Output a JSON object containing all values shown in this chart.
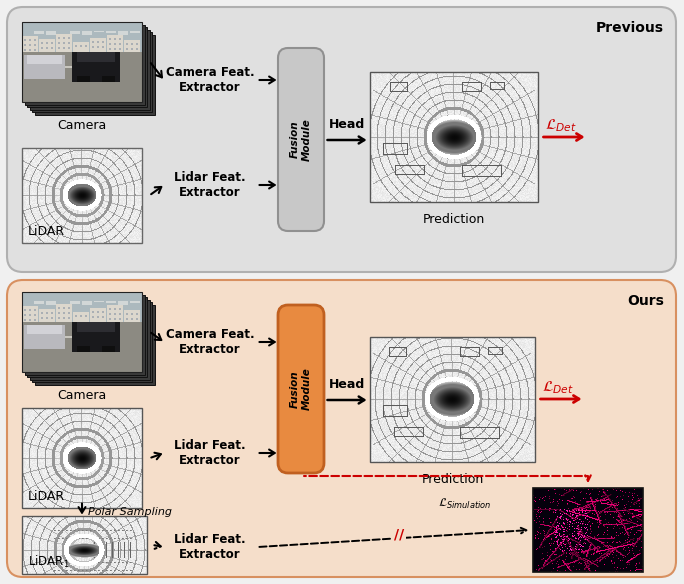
{
  "fig_width": 6.84,
  "fig_height": 5.84,
  "bg_color": "#f0f0f0",
  "panel_top_bg": "#e0e0e0",
  "panel_top_border": "#b0b0b0",
  "panel_bot_bg": "#f5deca",
  "panel_bot_border": "#d89060",
  "fusion_top_face": "#c8c8c8",
  "fusion_top_edge": "#909090",
  "fusion_bot_face": "#e88a40",
  "fusion_bot_edge": "#c06020",
  "red_color": "#cc0000",
  "black": "#000000",
  "label_previous": "Previous",
  "label_ours": "Ours",
  "label_camera": "Camera",
  "label_lidar": "LiDAR",
  "label_prediction": "Prediction",
  "label_polar": "Polar Sampling"
}
